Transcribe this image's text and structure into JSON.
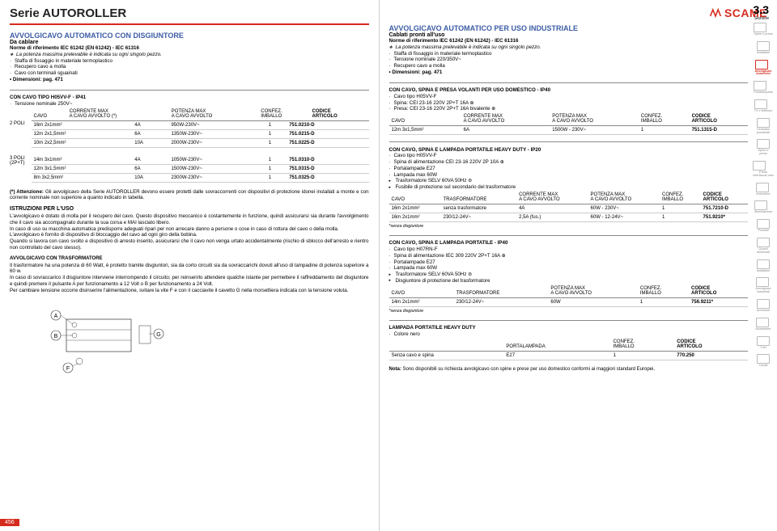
{
  "series": "Serie AUTOROLLER",
  "brand": "SCAME",
  "page_num_left": "456",
  "section": {
    "num": "3.3",
    "label": "Sezione"
  },
  "left": {
    "title": "AVVOLGICAVO AUTOMATICO CON DISGIUNTORE",
    "sub": "Da cablare",
    "norm": "Norme di riferimento IEC 61242 (EN 61242) - IEC 61316",
    "note1": "La potenza massima prelevabile è indicata su ogni singolo pezzo.",
    "bullets": [
      "Staffa di fissaggio in materiale termoplastico",
      "Recupero cavo a molla",
      "Cavo con terminali sguainati"
    ],
    "dim": "Dimensioni: pag. 471",
    "sect1": {
      "head": "CON CAVO TIPO H05VV-F - IP41",
      "sub": "Tensione nominale 250V~",
      "cols": [
        "CAVO",
        "CORRENTE MAX\nA CAVO AVVOLTO (*)",
        "POTENZA MAX\nA CAVO AVVOLTO",
        "CONFEZ.\nIMBALLO",
        "CODICE\nARTICOLO"
      ],
      "group1_label": "2 POLI",
      "rows1": [
        [
          "16m 2x1mm²",
          "4A",
          "950W-230V~",
          "1",
          "751.0210-D"
        ],
        [
          "12m 2x1,5mm²",
          "6A",
          "1350W-230V~",
          "1",
          "751.0215-D"
        ],
        [
          "10m 2x2,5mm²",
          "10A",
          "2000W-230V~",
          "1",
          "751.0225-D"
        ]
      ],
      "group2_label": "3 POLI\n(2P+T)",
      "rows2": [
        [
          "14m 3x1mm²",
          "4A",
          "1050W-230V~",
          "1",
          "751.0310-D"
        ],
        [
          "12m 3x1,5mm²",
          "6A",
          "1500W-230V~",
          "1",
          "751.0315-D"
        ],
        [
          "8m 3x2,5mm²",
          "10A",
          "2300W-230V~",
          "1",
          "751.0325-D"
        ]
      ]
    },
    "attention_head": "(*) Attenzione:",
    "attention_body": " Gli avvolgicavo della Serie AUTOROLLER devono essere protetti dalle sovraccorrenti con dispositivi di protezione idonei installati a monte e con corrente nominale non superiore a quanto indicato in tabella.",
    "instr_head": "ISTRUZIONI PER L'USO",
    "instr_body": "L'avvolgicavo è dotato di molla per il recupero del cavo. Questo dispositivo meccanico è costantemente in funzione, quindi assicurarsi sia durante l'avvolgimento che il cavo sia accompagnato durante la sua corsa e MAI lasciato libero.\nIn caso di uso su macchina automatica predisporre adeguati ripari per non arrecare danno a persone o cose in caso di rottura del cavo o della molla.\nL'avvolgicavo è fornito di dispositivo di bloccaggio del cavo ad ogni giro della bobina.\nQuando si lavora con cavo svolto e dispositivo di arresto inserito, assicurarsi che il cavo non venga urtato accidentalmente (rischio di sblocco dell'arresto e rientro non controllato del cavo stesso).",
    "trasf_head": "AVVOLGICAVO CON TRASFORMATORE",
    "trasf_body": "Il trasformatore ha una potenza di 60 Watt, è protetto tramite disgiuntori, sia da corto circuiti sia da sovraccarichi dovuti all'uso di lampadine di potenza superiore a 60 w.\nIn caso di sovraccarico il disgiuntore interviene interrompendo il circuito; per reinserirlo attendere qualche istante per permettere il raffreddamento del disgiuntore e quindi premere il pulsante A per funzionamento a 12 Volt o B per funzionamento a 24 Volt.\nPer cambiare tensione occorre disinserire l'alimentazione, svitare la vite F e con il cacciavite il cavetto G nella morsettiera indicata con la tensione voluta."
  },
  "right": {
    "title": "AVVOLGICAVO AUTOMATICO PER USO INDUSTRIALE",
    "sub": "Cablati pronti all'uso",
    "norm": "Norme di riferimento IEC 61242 (EN 61242) - IEC 61316",
    "note1": "La potenza massima prelevabile è indicata su ogni singolo pezzo.",
    "bullets": [
      "Staffa di fissaggio in materiale termoplastico",
      "Tensione nominale 220/350V~",
      "Recupero cavo a molla"
    ],
    "dim": "Dimensioni: pag. 471",
    "sect1": {
      "head": "CON CAVO, SPINA E PRESA VOLANTI PER USO DOMESTICO - IP40",
      "bullets": [
        "Cavo tipo H05VV-F",
        "Spina: CEI 23-16 220V 2P+T 16A ⊕",
        "Presa: CEI 23-16 220V 2P+T 16A bivalente ⊕"
      ],
      "cols": [
        "CAVO",
        "CORRENTE MAX\nA CAVO AVVOLTO",
        "POTENZA MAX\nA CAVO AVVOLTO",
        "CONFEZ.\nIMBALLO",
        "CODICE\nARTICOLO"
      ],
      "rows": [
        [
          "12m 3x1,5mm²",
          "6A",
          "1500W - 230V~",
          "1",
          "751.1315-D"
        ]
      ]
    },
    "sect2": {
      "head": "CON CAVO, SPINA E LAMPADA PORTATILE HEAVY DUTY - IP20",
      "bullets": [
        "Cavo tipo H05VV-F",
        "Spina di alimentazione CEI 23-16 220V 2P 10A ⊕",
        "Portalampade E27",
        "Lampada max 60W",
        "Trasformatore SELV 60VA 50Hz ⊜",
        "Fusibile di protezione sul secondario del trasformatore"
      ],
      "cols": [
        "CAVO",
        "TRASFORMATORE",
        "CORRENTE MAX\nA CAVO AVVOLTO",
        "POTENZA MAX\nA CAVO AVVOLTO",
        "CONFEZ.\nIMBALLO",
        "CODICE\nARTICOLO"
      ],
      "rows": [
        [
          "16m 2x1mm²",
          "senza trasformatore",
          "4A",
          "60W - 230V~",
          "1",
          "751.7210-D"
        ],
        [
          "16m 2x1mm²",
          "230/12-24V~",
          "2,5A (fus.)",
          "60W - 12-24V~",
          "1",
          "751.9210*"
        ]
      ],
      "foot": "*senza disgiuntore"
    },
    "sect3": {
      "head": "CON CAVO, SPINA E LAMPADA PORTATILE - IP40",
      "bullets": [
        "Cavo tipo H07RN-F",
        "Spina di alimentazione IEC 309 220V 2P+T 16A ⊕",
        "Portalampade E27",
        "Lampada max 60W",
        "Trasformatore SELV 60VA 50Hz ⊜",
        "Disgiuntore di protezione del trasformatore"
      ],
      "cols": [
        "CAVO",
        "TRASFORMATORE",
        "POTENZA MAX\nA CAVO AVVOLTO",
        "CONFEZ.\nIMBALLO",
        "CODICE\nARTICOLO"
      ],
      "rows": [
        [
          "14m 2x1mm²",
          "230/12-24V~",
          "60W",
          "1",
          "756.9211*"
        ]
      ],
      "foot": "*senza disgiuntore"
    },
    "sect4": {
      "head": "LAMPADA PORTATILE HEAVY DUTY",
      "bullets": [
        "Colore nero"
      ],
      "cols": [
        "",
        "PORTALAMPADA",
        "CONFEZ.\nIMBALLO",
        "CODICE\nARTICOLO"
      ],
      "rows": [
        [
          "Senza cavo e spina",
          "E27",
          "1",
          "770.250"
        ]
      ]
    },
    "end_note_head": "Nota:",
    "end_note": " Sono disponibili su richiesta avvolgicavo con spine e prese per uso domestico conformi ai maggiori standard Europei."
  },
  "sidebar": [
    "Spine e prese",
    "Adattatori",
    "Avvolgicavi\ndomestici",
    "Portalampade",
    "TV e telefono",
    "Centralini\nportafrutti",
    "Spine e\nprese",
    "Prese\ninterfaccia cato",
    "Interruttori",
    "Illuminazione",
    "Prodotti",
    "Quadri\nassiemati",
    "Adattatori",
    "Avvolgicavi\nindustriali",
    "Accessori",
    "Morsettiere",
    "Tubi",
    "Canali"
  ],
  "sidebar_active": 2
}
